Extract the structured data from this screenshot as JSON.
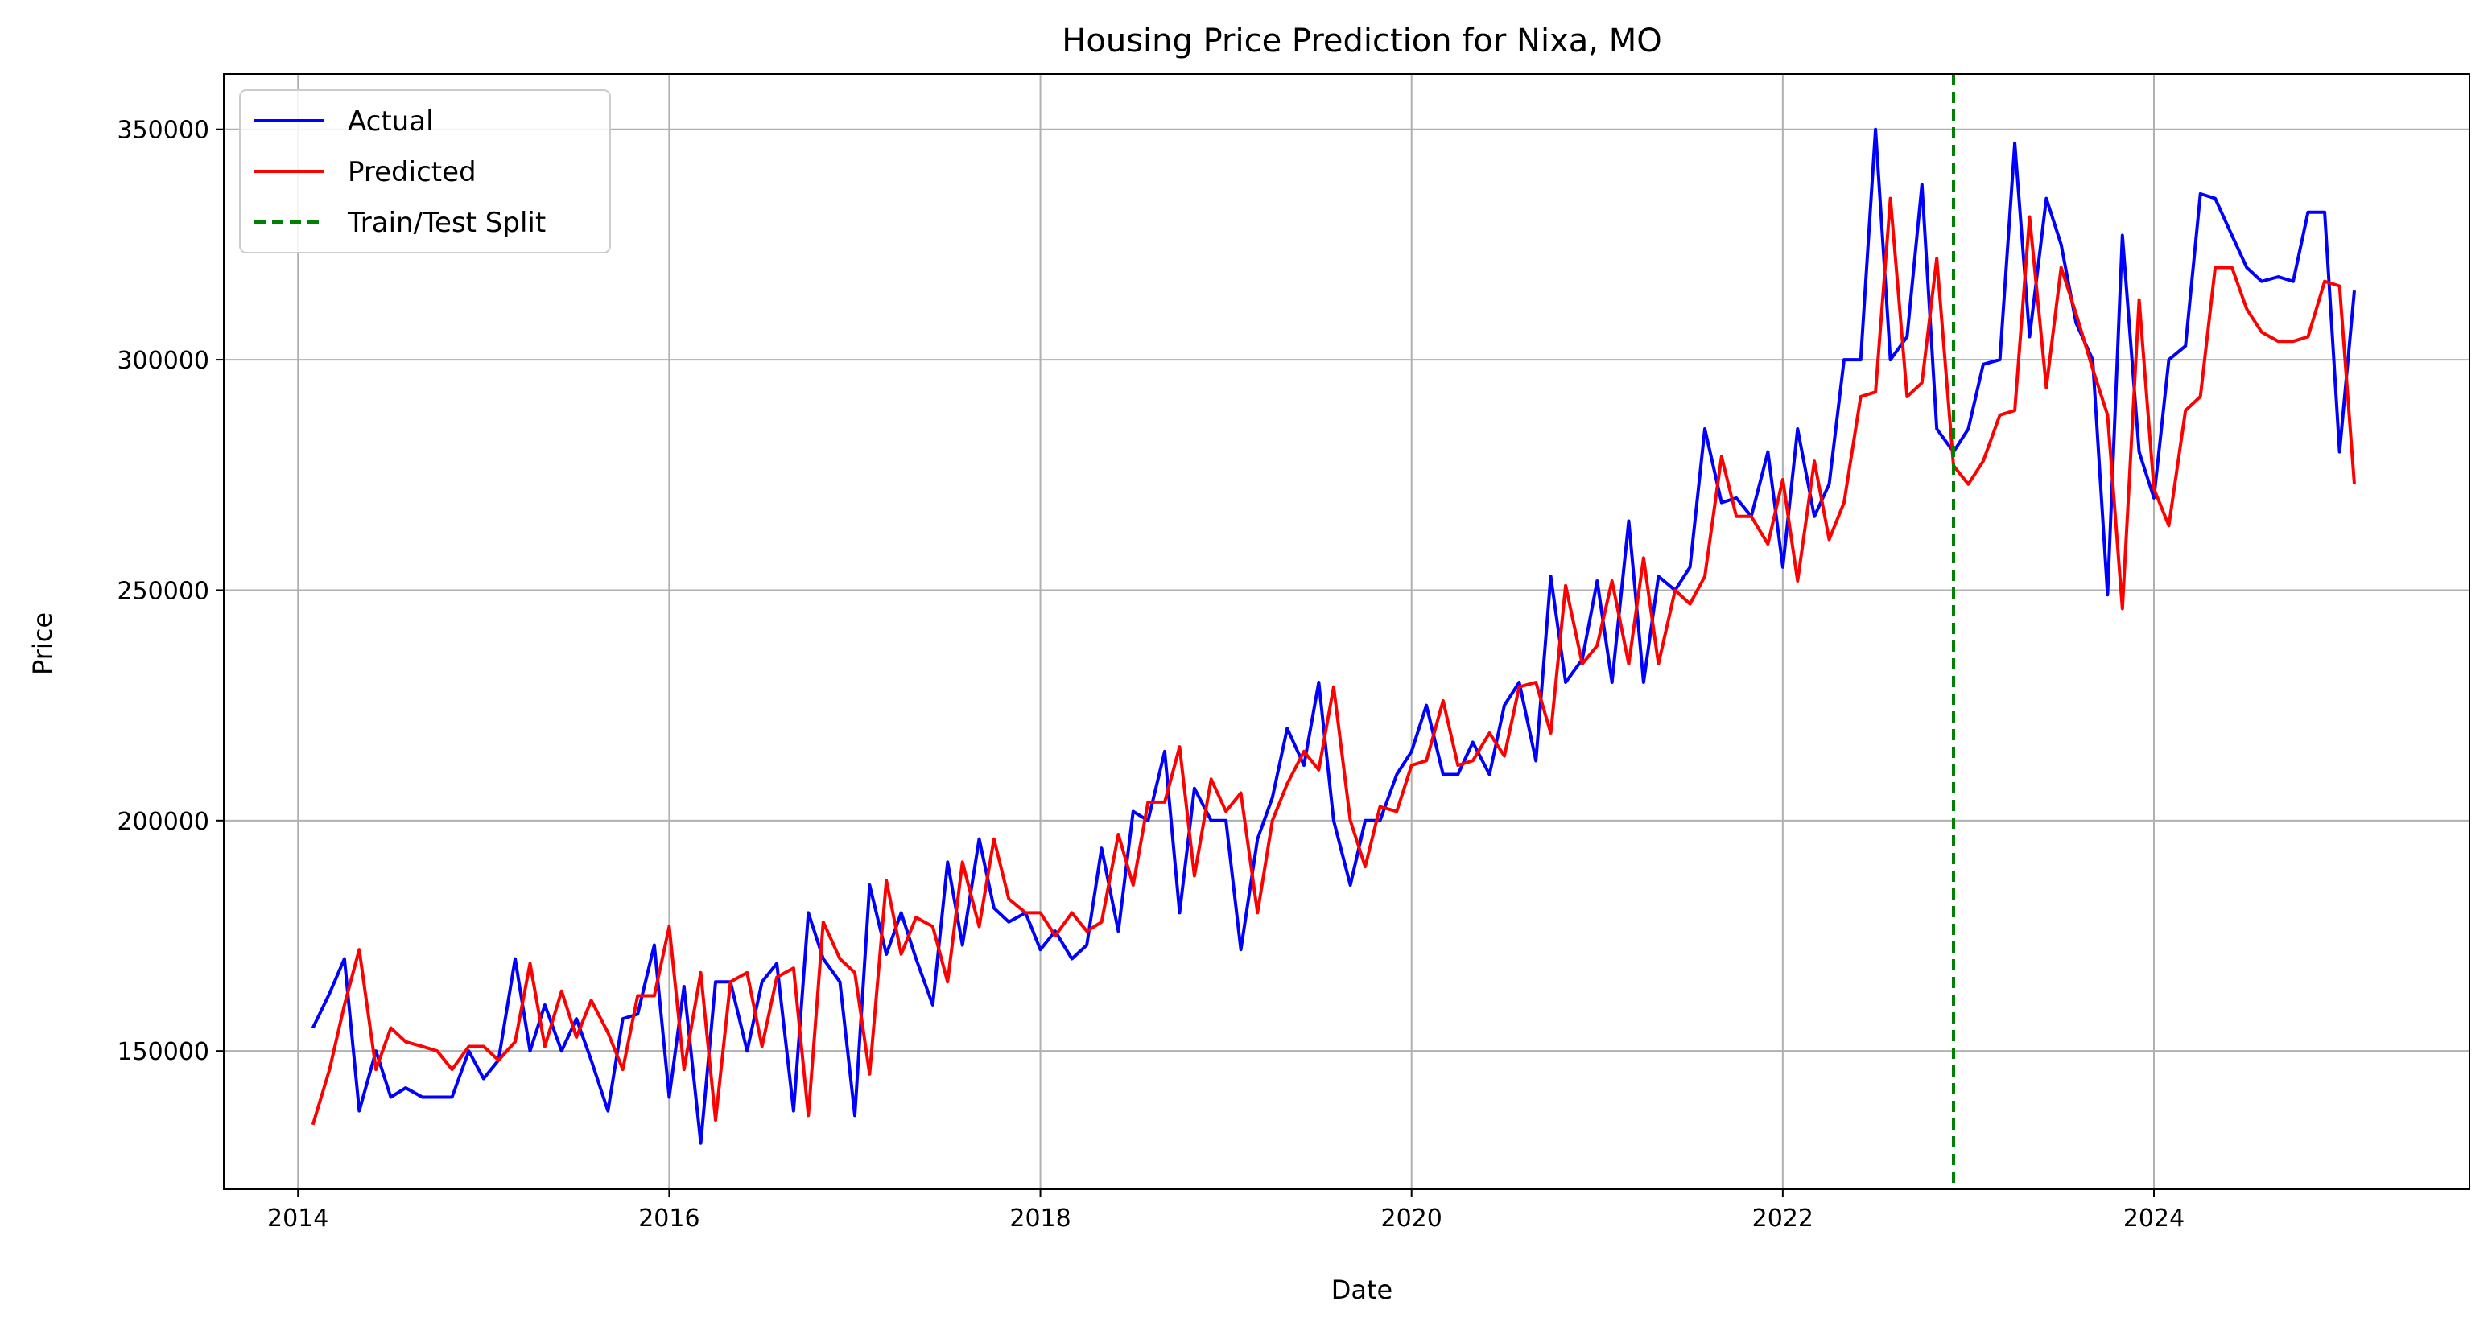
{
  "chart_data": {
    "type": "line",
    "title": "Housing Price Prediction for Nixa, MO",
    "xlabel": "Date",
    "ylabel": "Price",
    "xlim": [
      2013.6,
      2025.7
    ],
    "ylim": [
      120000,
      362000
    ],
    "x_ticks": [
      "2014",
      "2016",
      "2018",
      "2020",
      "2022",
      "2024"
    ],
    "y_ticks": [
      "150000",
      "200000",
      "250000",
      "300000",
      "350000"
    ],
    "grid": true,
    "legend_position": "top-left",
    "split": {
      "name": "Train/Test Split",
      "x": 2022.92,
      "color": "#008000",
      "style": "dashed"
    },
    "series": [
      {
        "name": "Actual",
        "color": "#0000ff",
        "x": [
          2014.08,
          2014.17,
          2014.25,
          2014.33,
          2014.42,
          2014.5,
          2014.58,
          2014.67,
          2014.75,
          2014.83,
          2014.92,
          2015.0,
          2015.08,
          2015.17,
          2015.25,
          2015.33,
          2015.42,
          2015.5,
          2015.58,
          2015.67,
          2015.75,
          2015.83,
          2015.92,
          2016.0,
          2016.08,
          2016.17,
          2016.25,
          2016.33,
          2016.42,
          2016.5,
          2016.58,
          2016.67,
          2016.75,
          2016.83,
          2016.92,
          2017.0,
          2017.08,
          2017.17,
          2017.25,
          2017.33,
          2017.42,
          2017.5,
          2017.58,
          2017.67,
          2017.75,
          2017.83,
          2017.92,
          2018.0,
          2018.08,
          2018.17,
          2018.25,
          2018.33,
          2018.42,
          2018.5,
          2018.58,
          2018.67,
          2018.75,
          2018.83,
          2018.92,
          2019.0,
          2019.08,
          2019.17,
          2019.25,
          2019.33,
          2019.42,
          2019.5,
          2019.58,
          2019.67,
          2019.75,
          2019.83,
          2019.92,
          2020.0,
          2020.08,
          2020.17,
          2020.25,
          2020.33,
          2020.42,
          2020.5,
          2020.58,
          2020.67,
          2020.75,
          2020.83,
          2020.92,
          2021.0,
          2021.08,
          2021.17,
          2021.25,
          2021.33,
          2021.42,
          2021.5,
          2021.58,
          2021.67,
          2021.75,
          2021.83,
          2021.92,
          2022.0,
          2022.08,
          2022.17,
          2022.25,
          2022.33,
          2022.42,
          2022.5,
          2022.58,
          2022.67,
          2022.75,
          2022.83,
          2022.92,
          2023.0,
          2023.08,
          2023.17,
          2023.25,
          2023.33,
          2023.42,
          2023.5,
          2023.58,
          2023.67,
          2023.75,
          2023.83,
          2023.92,
          2024.0,
          2024.08,
          2024.17,
          2024.25,
          2024.33,
          2024.42,
          2024.5,
          2024.58,
          2024.67,
          2024.75,
          2024.83,
          2024.92,
          2025.0,
          2025.08
        ],
        "values": [
          155000,
          162500,
          170000,
          137000,
          150000,
          140000,
          142000,
          140000,
          140000,
          140000,
          150000,
          144000,
          148000,
          170000,
          150000,
          160000,
          150000,
          157000,
          148000,
          137000,
          157000,
          158000,
          173000,
          140000,
          164000,
          130000,
          165000,
          165000,
          150000,
          165000,
          169000,
          137000,
          180000,
          170000,
          165000,
          136000,
          186000,
          171000,
          180000,
          170000,
          160000,
          191000,
          173000,
          196000,
          181000,
          178000,
          180000,
          172000,
          176000,
          170000,
          173000,
          194000,
          176000,
          202000,
          200000,
          215000,
          180000,
          207000,
          200000,
          200000,
          172000,
          196000,
          205000,
          220000,
          212000,
          230000,
          200000,
          186000,
          200000,
          200000,
          210000,
          215000,
          225000,
          210000,
          210000,
          217000,
          210000,
          225000,
          230000,
          213000,
          253000,
          230000,
          235000,
          252000,
          230000,
          265000,
          230000,
          253000,
          250000,
          255000,
          285000,
          269000,
          270000,
          266000,
          280000,
          255000,
          285000,
          266000,
          273000,
          300000,
          300000,
          350000,
          300000,
          305000,
          338000,
          285000,
          280000,
          285000,
          299000,
          300000,
          347000,
          305000,
          335000,
          325000,
          308000,
          300000,
          249000,
          327000,
          280000,
          270000,
          300000,
          303000,
          336000,
          335000,
          327000,
          320000,
          317000,
          318000,
          317000,
          332000,
          332000,
          280000,
          315000
        ]
      },
      {
        "name": "Predicted",
        "color": "#ff0000",
        "x": [
          2014.08,
          2014.17,
          2014.25,
          2014.33,
          2014.42,
          2014.5,
          2014.58,
          2014.67,
          2014.75,
          2014.83,
          2014.92,
          2015.0,
          2015.08,
          2015.17,
          2015.25,
          2015.33,
          2015.42,
          2015.5,
          2015.58,
          2015.67,
          2015.75,
          2015.83,
          2015.92,
          2016.0,
          2016.08,
          2016.17,
          2016.25,
          2016.33,
          2016.42,
          2016.5,
          2016.58,
          2016.67,
          2016.75,
          2016.83,
          2016.92,
          2017.0,
          2017.08,
          2017.17,
          2017.25,
          2017.33,
          2017.42,
          2017.5,
          2017.58,
          2017.67,
          2017.75,
          2017.83,
          2017.92,
          2018.0,
          2018.08,
          2018.17,
          2018.25,
          2018.33,
          2018.42,
          2018.5,
          2018.58,
          2018.67,
          2018.75,
          2018.83,
          2018.92,
          2019.0,
          2019.08,
          2019.17,
          2019.25,
          2019.33,
          2019.42,
          2019.5,
          2019.58,
          2019.67,
          2019.75,
          2019.83,
          2019.92,
          2020.0,
          2020.08,
          2020.17,
          2020.25,
          2020.33,
          2020.42,
          2020.5,
          2020.58,
          2020.67,
          2020.75,
          2020.83,
          2020.92,
          2021.0,
          2021.08,
          2021.17,
          2021.25,
          2021.33,
          2021.42,
          2021.5,
          2021.58,
          2021.67,
          2021.75,
          2021.83,
          2021.92,
          2022.0,
          2022.08,
          2022.17,
          2022.25,
          2022.33,
          2022.42,
          2022.5,
          2022.58,
          2022.67,
          2022.75,
          2022.83,
          2022.92,
          2023.0,
          2023.08,
          2023.17,
          2023.25,
          2023.33,
          2023.42,
          2023.5,
          2023.58,
          2023.67,
          2023.75,
          2023.83,
          2023.92,
          2024.0,
          2024.08,
          2024.17,
          2024.25,
          2024.33,
          2024.42,
          2024.5,
          2024.58,
          2024.67,
          2024.75,
          2024.83,
          2024.92,
          2025.0,
          2025.08
        ],
        "values": [
          134000,
          146000,
          160000,
          172000,
          146000,
          155000,
          152000,
          151000,
          150000,
          146000,
          151000,
          151000,
          148000,
          152000,
          169000,
          151000,
          163000,
          153000,
          161000,
          154000,
          146000,
          162000,
          162000,
          177000,
          146000,
          167000,
          135000,
          165000,
          167000,
          151000,
          166000,
          168000,
          136000,
          178000,
          170000,
          167000,
          145000,
          187000,
          171000,
          179000,
          177000,
          165000,
          191000,
          177000,
          196000,
          183000,
          180000,
          180000,
          175000,
          180000,
          176000,
          178000,
          197000,
          186000,
          204000,
          204000,
          216000,
          188000,
          209000,
          202000,
          206000,
          180000,
          200000,
          208000,
          215000,
          211000,
          229000,
          200000,
          190000,
          203000,
          202000,
          212000,
          213000,
          226000,
          212000,
          213000,
          219000,
          214000,
          229000,
          230000,
          219000,
          251000,
          234000,
          238000,
          252000,
          234000,
          257000,
          234000,
          250000,
          247000,
          253000,
          279000,
          266000,
          266000,
          260000,
          274000,
          252000,
          278000,
          261000,
          269000,
          292000,
          293000,
          335000,
          292000,
          295000,
          322000,
          277000,
          273000,
          278000,
          288000,
          289000,
          331000,
          294000,
          320000,
          310000,
          298000,
          288000,
          246000,
          313000,
          272000,
          264000,
          289000,
          292000,
          320000,
          320000,
          311000,
          306000,
          304000,
          304000,
          305000,
          317000,
          316000,
          273000
        ]
      }
    ]
  }
}
